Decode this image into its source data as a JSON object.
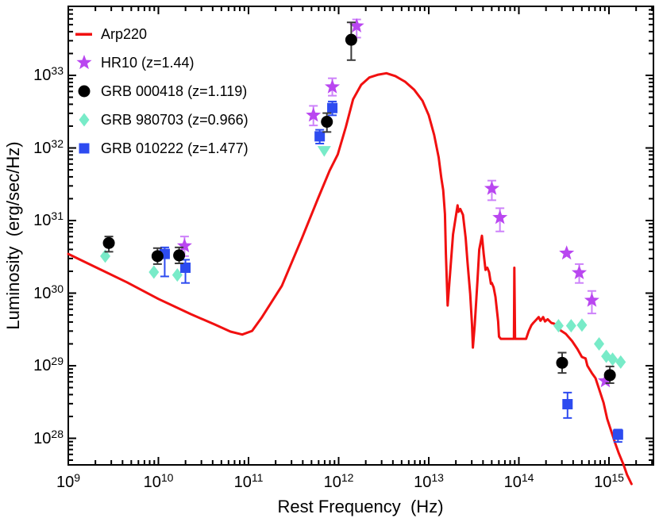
{
  "chart_data": {
    "type": "line+scatter",
    "title": "",
    "xlabel": "Rest Frequency  (Hz)",
    "ylabel": "Luminosity  (erg/sec/Hz)",
    "xscale": "log",
    "yscale": "log",
    "xlim_log": [
      9.0,
      15.49
    ],
    "ylim_log": [
      27.63,
      33.95
    ],
    "x_tick_exponents": [
      9,
      10,
      11,
      12,
      13,
      14,
      15
    ],
    "y_tick_exponents": [
      28,
      29,
      30,
      31,
      32,
      33
    ],
    "grid": false,
    "legend_position": "upper-left",
    "axis_color": "#000000",
    "series": [
      {
        "name": "Arp220",
        "type": "line",
        "marker": "line",
        "color": "#f11010",
        "linewidth": 3,
        "points": [
          [
            9.0,
            30.54
          ],
          [
            9.3,
            30.36
          ],
          [
            9.65,
            30.15
          ],
          [
            10.0,
            29.92
          ],
          [
            10.36,
            29.71
          ],
          [
            10.62,
            29.57
          ],
          [
            10.8,
            29.47
          ],
          [
            10.93,
            29.43
          ],
          [
            11.04,
            29.48
          ],
          [
            11.15,
            29.67
          ],
          [
            11.37,
            30.1
          ],
          [
            11.59,
            30.75
          ],
          [
            11.77,
            31.3
          ],
          [
            11.9,
            31.69
          ],
          [
            11.99,
            31.91
          ],
          [
            12.08,
            32.29
          ],
          [
            12.16,
            32.67
          ],
          [
            12.25,
            32.87
          ],
          [
            12.34,
            32.97
          ],
          [
            12.44,
            33.01
          ],
          [
            12.53,
            33.03
          ],
          [
            12.63,
            32.99
          ],
          [
            12.74,
            32.91
          ],
          [
            12.84,
            32.8
          ],
          [
            12.93,
            32.65
          ],
          [
            13.0,
            32.45
          ],
          [
            13.06,
            32.18
          ],
          [
            13.11,
            31.87
          ],
          [
            13.14,
            31.58
          ],
          [
            13.16,
            31.42
          ],
          [
            13.18,
            31.09
          ],
          [
            13.19,
            30.54
          ],
          [
            13.21,
            29.83
          ],
          [
            13.24,
            30.32
          ],
          [
            13.27,
            30.81
          ],
          [
            13.32,
            31.21
          ],
          [
            13.33,
            31.12
          ],
          [
            13.35,
            31.16
          ],
          [
            13.38,
            31.08
          ],
          [
            13.41,
            30.76
          ],
          [
            13.43,
            30.43
          ],
          [
            13.46,
            29.99
          ],
          [
            13.48,
            29.56
          ],
          [
            13.49,
            29.25
          ],
          [
            13.51,
            29.56
          ],
          [
            13.54,
            30.16
          ],
          [
            13.56,
            30.6
          ],
          [
            13.59,
            30.79
          ],
          [
            13.61,
            30.54
          ],
          [
            13.63,
            30.32
          ],
          [
            13.65,
            30.35
          ],
          [
            13.67,
            30.29
          ],
          [
            13.69,
            30.13
          ],
          [
            13.7,
            30.14
          ],
          [
            13.72,
            30.08
          ],
          [
            13.74,
            29.95
          ],
          [
            13.77,
            29.61
          ],
          [
            13.78,
            29.4
          ],
          [
            13.8,
            29.37
          ],
          [
            13.945,
            29.37
          ],
          [
            13.95,
            30.35
          ],
          [
            13.958,
            29.37
          ],
          [
            14.08,
            29.37
          ],
          [
            14.11,
            29.48
          ],
          [
            14.14,
            29.56
          ],
          [
            14.16,
            29.59
          ],
          [
            14.19,
            29.63
          ],
          [
            14.22,
            29.67
          ],
          [
            14.24,
            29.62
          ],
          [
            14.27,
            29.67
          ],
          [
            14.29,
            29.61
          ],
          [
            14.32,
            29.64
          ],
          [
            14.36,
            29.59
          ],
          [
            14.39,
            29.58
          ],
          [
            14.43,
            29.55
          ],
          [
            14.46,
            29.49
          ],
          [
            14.52,
            29.44
          ],
          [
            14.59,
            29.34
          ],
          [
            14.65,
            29.23
          ],
          [
            14.7,
            29.12
          ],
          [
            14.74,
            29.1
          ],
          [
            14.76,
            29.0
          ],
          [
            14.81,
            28.9
          ],
          [
            14.85,
            28.83
          ],
          [
            14.89,
            28.68
          ],
          [
            14.94,
            28.49
          ],
          [
            14.98,
            28.27
          ],
          [
            15.03,
            28.08
          ],
          [
            15.07,
            27.93
          ],
          [
            15.11,
            27.79
          ],
          [
            15.16,
            27.64
          ],
          [
            15.2,
            27.5
          ],
          [
            15.25,
            27.37
          ]
        ]
      },
      {
        "name": "HR10 (z=1.44)",
        "type": "scatter",
        "marker": "star",
        "color": "#b946f0",
        "error_color": "#cd82fa",
        "points": [
          [
            10.29,
            30.65,
            30.51,
            30.78
          ],
          [
            11.72,
            32.45,
            32.31,
            32.58
          ],
          [
            11.93,
            32.84,
            32.72,
            32.96
          ],
          [
            12.2,
            33.68,
            33.52,
            33.77
          ],
          [
            13.7,
            31.44,
            31.28,
            31.55
          ],
          [
            13.79,
            31.04,
            30.85,
            31.17
          ],
          [
            14.53,
            30.55,
            null,
            null
          ],
          [
            14.67,
            30.28,
            30.14,
            30.4
          ],
          [
            14.81,
            29.9,
            29.72,
            30.03
          ],
          [
            14.96,
            28.79,
            null,
            null
          ]
        ]
      },
      {
        "name": "GRB 000418 (z=1.119)",
        "type": "scatter",
        "marker": "circle",
        "color": "#000000",
        "error_color": "#3a3a3a",
        "points": [
          [
            9.45,
            30.69,
            30.57,
            30.78
          ],
          [
            9.99,
            30.51,
            30.4,
            30.62
          ],
          [
            10.23,
            30.52,
            30.41,
            30.63
          ],
          [
            11.87,
            32.36,
            32.22,
            32.48
          ],
          [
            12.14,
            33.49,
            33.21,
            33.73
          ],
          [
            14.48,
            29.04,
            28.9,
            29.18
          ],
          [
            15.01,
            28.87,
            28.76,
            28.99
          ]
        ]
      },
      {
        "name": "GRB 980703 (z=0.966)",
        "type": "scatter",
        "marker": "diamond",
        "color": "#78ebc8",
        "error_color": "#78ebc8",
        "points": [
          [
            9.41,
            30.51,
            null,
            null
          ],
          [
            9.95,
            30.29,
            null,
            null
          ],
          [
            10.21,
            30.25,
            null,
            null
          ],
          [
            14.44,
            29.55,
            null,
            null
          ],
          [
            14.58,
            29.55,
            null,
            null
          ],
          [
            14.7,
            29.56,
            null,
            null
          ],
          [
            14.89,
            29.3,
            null,
            null
          ],
          [
            14.97,
            29.13,
            null,
            null
          ],
          [
            15.04,
            29.09,
            null,
            null
          ],
          [
            15.13,
            29.05,
            null,
            null
          ]
        ],
        "upper_limits": [
          [
            11.84,
            31.96
          ]
        ]
      },
      {
        "name": "GRB 010222 (z=1.477)",
        "type": "scatter",
        "marker": "square",
        "color": "#2d4bf0",
        "error_color": "#2d4bf0",
        "points": [
          [
            10.07,
            30.54,
            30.23,
            30.63
          ],
          [
            10.3,
            30.35,
            30.14,
            30.46
          ],
          [
            11.79,
            32.16,
            32.06,
            32.25
          ],
          [
            11.93,
            32.55,
            32.45,
            32.64
          ],
          [
            14.54,
            28.47,
            28.28,
            28.63
          ],
          [
            15.1,
            28.05,
            27.95,
            28.12
          ]
        ]
      }
    ]
  }
}
